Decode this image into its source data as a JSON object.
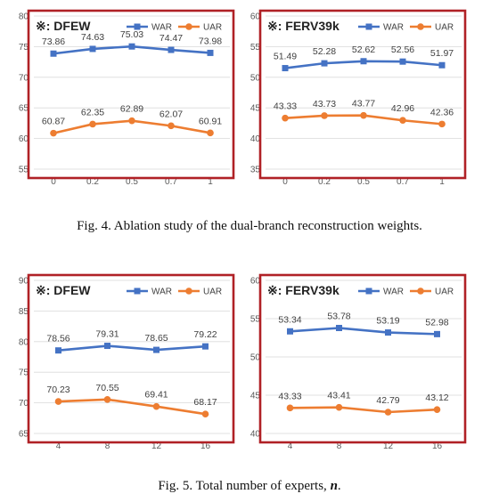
{
  "colors": {
    "war": "#4472C4",
    "uar": "#ED7D31",
    "frame": "#B02126"
  },
  "captions": {
    "fig4": "Fig. 4.   Ablation study of the dual-branch reconstruction weights.",
    "fig5_prefix": "Fig. 5.   Total number of experts, ",
    "fig5_math": "n",
    "fig5_suffix": "."
  },
  "chart_data": [
    {
      "type": "line",
      "title": "※: DFEW",
      "categories": [
        "0",
        "0.2",
        "0.5",
        "0.7",
        "1"
      ],
      "ylim": [
        55,
        80
      ],
      "yticks": [
        55,
        60,
        65,
        70,
        75,
        80
      ],
      "legend": "top-right",
      "series": [
        {
          "name": "WAR",
          "values": [
            73.86,
            74.63,
            75.03,
            74.47,
            73.98
          ]
        },
        {
          "name": "UAR",
          "values": [
            60.87,
            62.35,
            62.89,
            62.07,
            60.91
          ]
        }
      ]
    },
    {
      "type": "line",
      "title": "※: FERV39k",
      "categories": [
        "0",
        "0.2",
        "0.5",
        "0.7",
        "1"
      ],
      "ylim": [
        35,
        60
      ],
      "yticks": [
        35,
        40,
        45,
        50,
        55,
        60
      ],
      "legend": "top-right",
      "series": [
        {
          "name": "WAR",
          "values": [
            51.49,
            52.28,
            52.62,
            52.56,
            51.97
          ]
        },
        {
          "name": "UAR",
          "values": [
            43.33,
            43.73,
            43.77,
            42.96,
            42.36
          ]
        }
      ]
    },
    {
      "type": "line",
      "title": "※: DFEW",
      "categories": [
        "4",
        "8",
        "12",
        "16"
      ],
      "ylim": [
        65,
        90
      ],
      "yticks": [
        65,
        70,
        75,
        80,
        85,
        90
      ],
      "legend": "top-right",
      "series": [
        {
          "name": "WAR",
          "values": [
            78.56,
            79.31,
            78.65,
            79.22
          ]
        },
        {
          "name": "UAR",
          "values": [
            70.23,
            70.55,
            69.41,
            68.17
          ]
        }
      ]
    },
    {
      "type": "line",
      "title": "※: FERV39k",
      "categories": [
        "4",
        "8",
        "12",
        "16"
      ],
      "ylim": [
        40,
        60
      ],
      "yticks": [
        40,
        45,
        50,
        55,
        60
      ],
      "legend": "top-right",
      "series": [
        {
          "name": "WAR",
          "values": [
            53.34,
            53.78,
            53.19,
            52.98
          ]
        },
        {
          "name": "UAR",
          "values": [
            43.33,
            43.41,
            42.79,
            43.12
          ]
        }
      ]
    }
  ]
}
